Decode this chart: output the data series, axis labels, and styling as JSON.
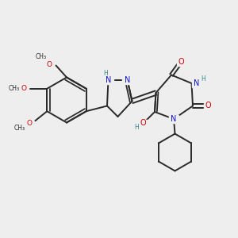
{
  "bg_color": "#eeeeee",
  "bond_color": "#2a2a2a",
  "N_color": "#1515cc",
  "O_color": "#cc0000",
  "H_color": "#338888",
  "figsize": [
    3.0,
    3.0
  ],
  "dpi": 100,
  "xlim": [
    0,
    10
  ],
  "ylim": [
    0,
    10
  ]
}
